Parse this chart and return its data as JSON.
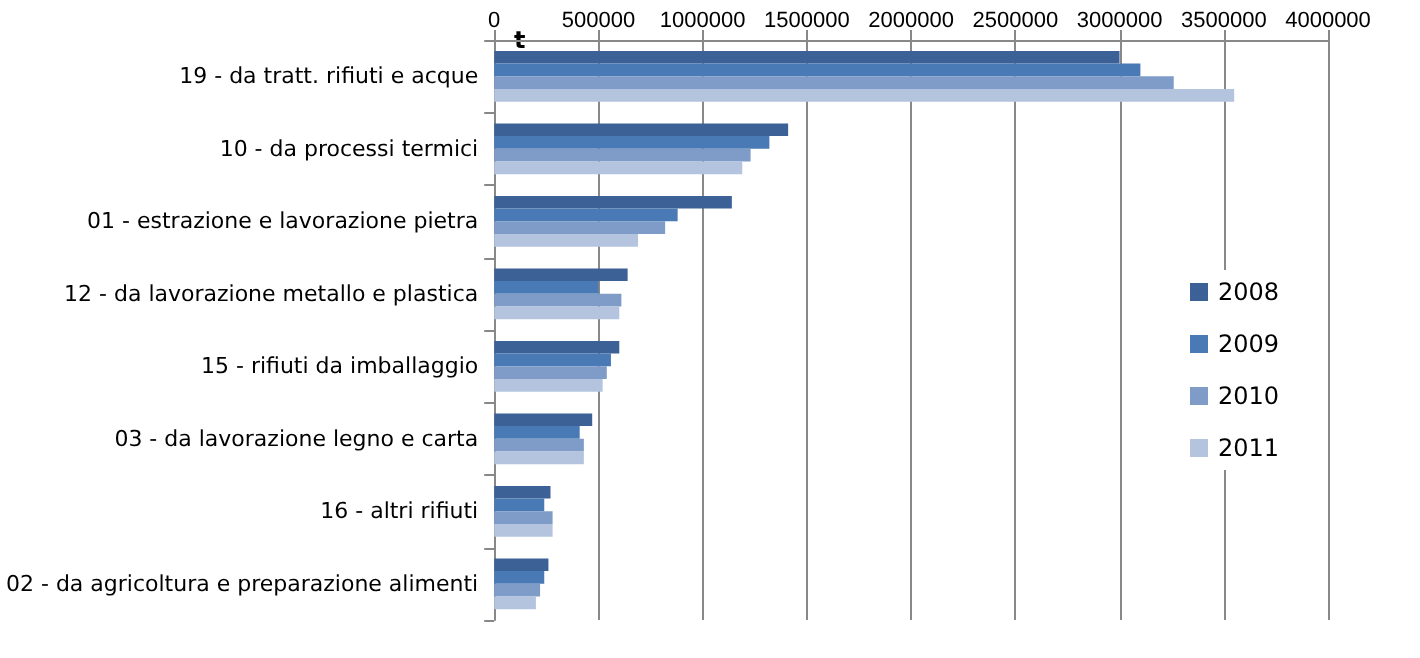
{
  "chart_data": {
    "type": "bar",
    "orientation": "horizontal",
    "xlabel": "t",
    "categories": [
      "19 - da tratt. rifiuti e acque",
      "10 - da processi termici",
      "01 - estrazione e lavorazione pietra",
      "12 - da lavorazione metallo e plastica",
      "15 - rifiuti da imballaggio",
      "03 - da lavorazione legno e carta",
      "16 - altri rifiuti",
      "02 - da agricoltura e preparazione alimenti"
    ],
    "series": [
      {
        "name": "2008",
        "color": "#3c6196",
        "values": [
          3000000,
          1410000,
          1140000,
          640000,
          600000,
          470000,
          270000,
          260000
        ]
      },
      {
        "name": "2009",
        "color": "#4a7ab5",
        "values": [
          3100000,
          1320000,
          880000,
          500000,
          560000,
          410000,
          240000,
          240000
        ]
      },
      {
        "name": "2010",
        "color": "#7f9cc8",
        "values": [
          3260000,
          1230000,
          820000,
          610000,
          540000,
          430000,
          280000,
          220000
        ]
      },
      {
        "name": "2011",
        "color": "#b4c4df",
        "values": [
          3550000,
          1190000,
          690000,
          600000,
          520000,
          430000,
          280000,
          200000
        ]
      }
    ],
    "xlim": [
      0,
      4000000
    ],
    "xticks": [
      0,
      500000,
      1000000,
      1500000,
      2000000,
      2500000,
      3000000,
      3500000,
      4000000
    ],
    "grid": "x",
    "legend": "right"
  }
}
